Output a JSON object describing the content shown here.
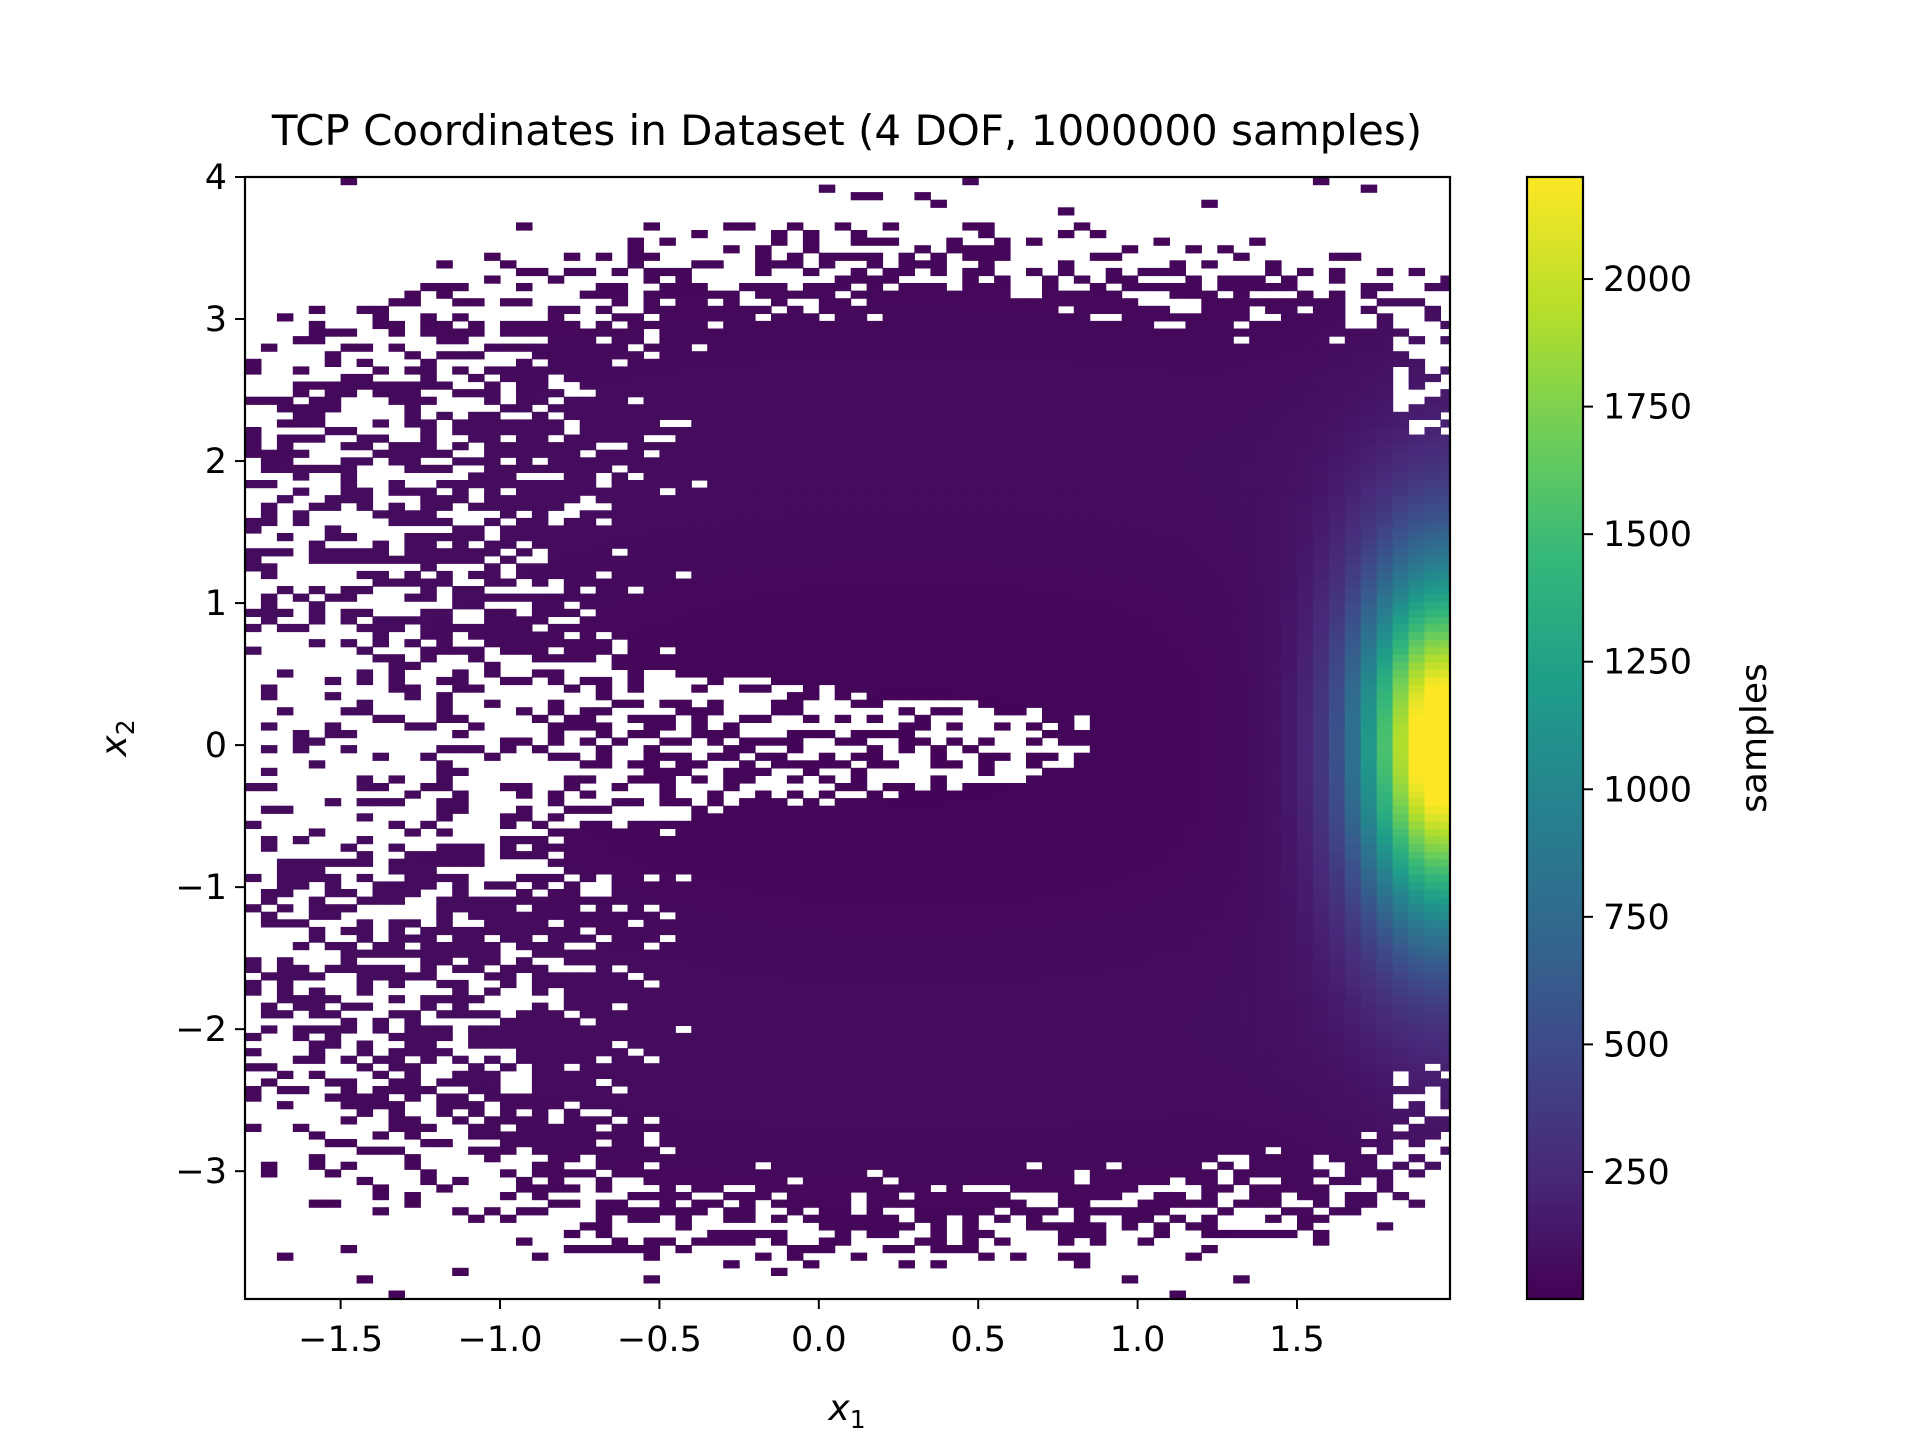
{
  "chart_data": {
    "type": "heatmap",
    "title": "TCP Coordinates in Dataset (4 DOF, 1000000 samples)",
    "xlabel": "x",
    "xlabel_sub": "1",
    "ylabel": "x",
    "ylabel_sub": "2",
    "xlim": [
      -1.8,
      1.98
    ],
    "ylim": [
      -3.9,
      4.0
    ],
    "x_ticks": [
      -1.5,
      -1.0,
      -0.5,
      0.0,
      0.5,
      1.0,
      1.5
    ],
    "x_tick_labels": [
      "−1.5",
      "−1.0",
      "−0.5",
      "0.0",
      "0.5",
      "1.0",
      "1.5"
    ],
    "y_ticks": [
      -3,
      -2,
      -1,
      0,
      1,
      2,
      3,
      4
    ],
    "y_tick_labels": [
      "−3",
      "−2",
      "−1",
      "0",
      "1",
      "2",
      "3",
      "4"
    ],
    "colorbar": {
      "label": "samples",
      "colormap": "viridis",
      "range": [
        1,
        2200
      ],
      "ticks": [
        250,
        500,
        750,
        1000,
        1250,
        1500,
        1750,
        2000
      ],
      "tick_labels": [
        "250",
        "500",
        "750",
        "1000",
        "1250",
        "1500",
        "1750",
        "2000"
      ]
    },
    "grid": false,
    "density_description": {
      "peak_location": [
        1.95,
        0.0
      ],
      "peak_value": 2200,
      "outer_radius": 3.3,
      "center": [
        0.3,
        0.0
      ],
      "gap_wedge_from_left_to_x": 0.85
    }
  },
  "colors": {
    "viridis": [
      "#440154",
      "#482878",
      "#3e4989",
      "#31688e",
      "#26828e",
      "#1f9e89",
      "#35b779",
      "#6ece58",
      "#b5de2b",
      "#fde725"
    ],
    "axes": "#000000",
    "background": "#ffffff"
  }
}
